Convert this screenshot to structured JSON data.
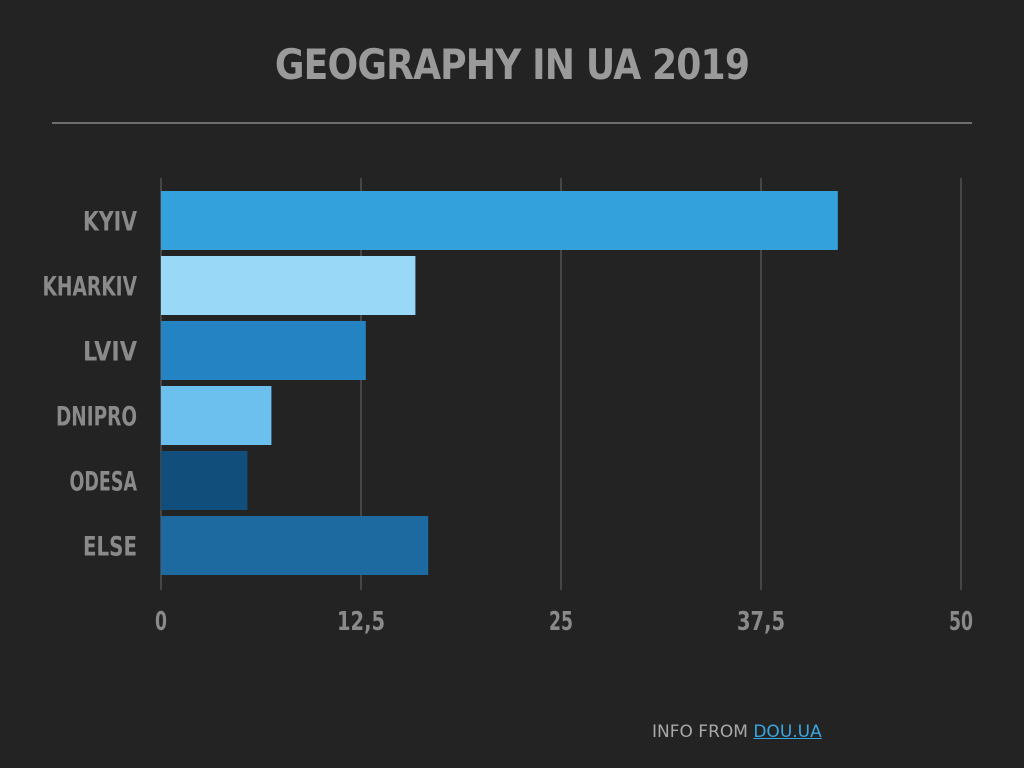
{
  "page": {
    "title": "GEOGRAPHY IN UA 2019"
  },
  "footer": {
    "prefix": "INFO FROM ",
    "link": "DOU.UA"
  },
  "colors": {
    "background": "#232323",
    "text": "#8a8a8a",
    "gridline": "#6a6a6a",
    "link": "#3aa6df"
  },
  "chart_data": {
    "type": "bar",
    "orientation": "horizontal",
    "title": "GEOGRAPHY IN UA 2019",
    "categories": [
      "KYIV",
      "KHARKIV",
      "LVIV",
      "DNIPRO",
      "ODESA",
      "ELSE"
    ],
    "values": [
      42.3,
      15.9,
      12.8,
      6.9,
      5.4,
      16.7
    ],
    "bar_colors": [
      "#33a2dc",
      "#9ad8f7",
      "#2484c3",
      "#6cc0ee",
      "#124e7c",
      "#1c6a9f"
    ],
    "xlim": [
      0,
      50
    ],
    "xticks": [
      0,
      12.5,
      25,
      37.5,
      50
    ],
    "xtick_labels": [
      "0",
      "12,5",
      "25",
      "37,5",
      "50"
    ],
    "xlabel": "",
    "ylabel": "",
    "grid": true,
    "legend": "none"
  }
}
